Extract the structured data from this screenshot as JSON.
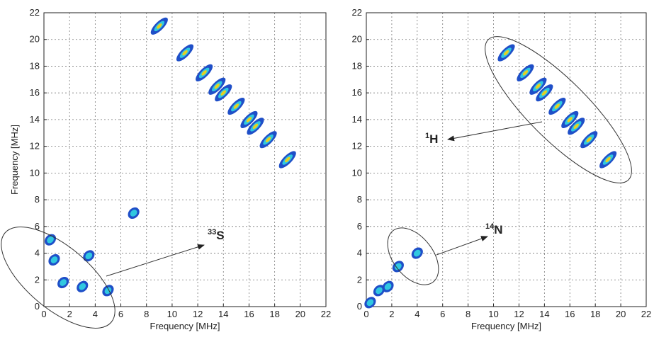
{
  "chart_data": [
    {
      "type": "scatter",
      "xlabel": "Frequency [MHz]",
      "ylabel": "Frequency [MHz]",
      "x": [
        9,
        11,
        12.5,
        13.5,
        14,
        15,
        16,
        16.5,
        17.5,
        19,
        1.5,
        0.8,
        3.5,
        3,
        5,
        0.5,
        7
      ],
      "y": [
        21,
        19,
        17.5,
        16.5,
        16,
        15,
        14,
        13.5,
        12.5,
        11,
        1.8,
        3.5,
        3.8,
        1.5,
        1.2,
        5,
        7
      ],
      "xlim": [
        0,
        22
      ],
      "ylim": [
        0,
        22
      ],
      "xticks": [
        0,
        2,
        4,
        6,
        8,
        10,
        12,
        14,
        16,
        18,
        20,
        22
      ],
      "yticks": [
        0,
        2,
        4,
        6,
        8,
        10,
        12,
        14,
        16,
        18,
        20,
        22
      ],
      "grid": true,
      "annotations": [
        {
          "sup": "33",
          "text": "S"
        }
      ]
    },
    {
      "type": "scatter",
      "xlabel": "Frequency [MHz]",
      "x": [
        11,
        12.5,
        13.5,
        14,
        15,
        16,
        16.5,
        17.5,
        19,
        4,
        2.5,
        1,
        1.7,
        0.3
      ],
      "y": [
        19,
        17.5,
        16.5,
        16,
        15,
        14,
        13.5,
        12.5,
        11,
        4,
        3,
        1.2,
        1.5,
        0.3
      ],
      "xlim": [
        0,
        22
      ],
      "ylim": [
        0,
        22
      ],
      "xticks": [
        0,
        2,
        4,
        6,
        8,
        10,
        12,
        14,
        16,
        18,
        20,
        22
      ],
      "yticks": [
        0,
        2,
        4,
        6,
        8,
        10,
        12,
        14,
        16,
        18,
        20,
        22
      ],
      "grid": true,
      "annotations": [
        {
          "sup": "1",
          "text": "H"
        },
        {
          "sup": "14",
          "text": "N"
        }
      ]
    }
  ]
}
